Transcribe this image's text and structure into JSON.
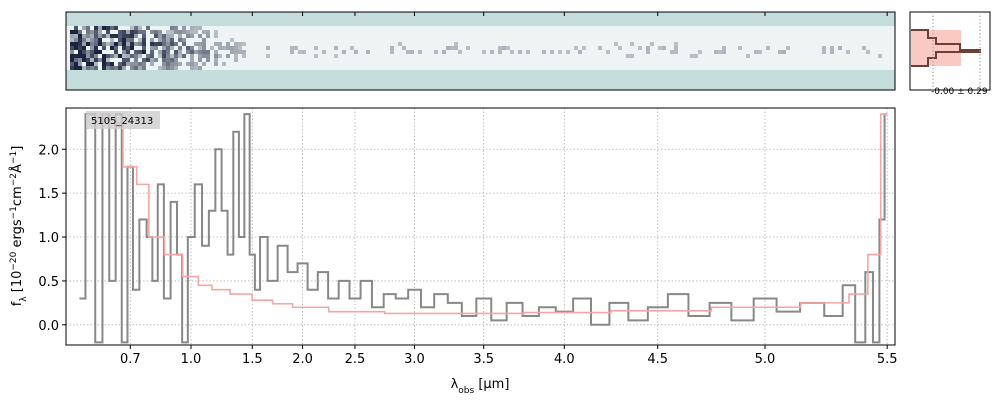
{
  "chart_data": {
    "type": "spectrum",
    "annotation": "5105_24313",
    "profile_label": "-0.00 ± 0.29",
    "xlabel": [
      "λ",
      "obs",
      " [μm]"
    ],
    "ylabel": [
      "f",
      "λ",
      " [10",
      "−20",
      " ergs",
      "−1",
      "cm",
      "−2",
      "Å",
      "−1",
      "]"
    ],
    "xlim": [
      0.52,
      5.53
    ],
    "ylim": [
      -0.23,
      2.47
    ],
    "xticks": [
      0.7,
      {
        "value": 1,
        "label": "1.0"
      },
      1.5,
      {
        "value": 2,
        "label": "2.0"
      },
      2.5,
      {
        "value": 3,
        "label": "3.0"
      },
      3.5,
      {
        "value": 4,
        "label": "4.0"
      },
      4.5,
      {
        "value": 5,
        "label": "5.0"
      },
      5.5
    ],
    "yticks": [
      {
        "value": 0,
        "label": "0.0"
      },
      0.5,
      {
        "value": 1,
        "label": "1.0"
      },
      1.5,
      {
        "value": 2,
        "label": "2.0"
      }
    ],
    "grid": true,
    "series": [
      {
        "name": "data",
        "color": "#888888",
        "x": [
          0.55,
          0.58,
          0.6,
          0.62,
          0.64,
          0.66,
          0.68,
          0.7,
          0.72,
          0.75,
          0.78,
          0.8,
          0.83,
          0.86,
          0.9,
          0.93,
          0.96,
          1.0,
          1.05,
          1.1,
          1.15,
          1.2,
          1.25,
          1.3,
          1.35,
          1.4,
          1.45,
          1.5,
          1.55,
          1.6,
          1.7,
          1.8,
          1.9,
          2.0,
          2.1,
          2.2,
          2.3,
          2.4,
          2.5,
          2.6,
          2.7,
          2.8,
          2.9,
          3.0,
          3.1,
          3.2,
          3.3,
          3.4,
          3.5,
          3.6,
          3.7,
          3.8,
          3.9,
          4.0,
          4.1,
          4.2,
          4.3,
          4.4,
          4.5,
          4.6,
          4.7,
          4.8,
          4.9,
          5.0,
          5.1,
          5.2,
          5.3,
          5.35,
          5.4,
          5.43,
          5.46,
          5.48,
          5.5
        ],
        "values": [
          0.3,
          2.4,
          -0.2,
          2.4,
          0.5,
          2.4,
          -0.2,
          1.8,
          0.4,
          1.2,
          1.0,
          0.5,
          1.6,
          0.3,
          1.4,
          0.8,
          -0.2,
          1.0,
          1.6,
          0.9,
          1.3,
          2.0,
          1.3,
          0.8,
          2.2,
          1.0,
          2.4,
          0.8,
          0.4,
          1.0,
          0.5,
          0.9,
          0.6,
          0.7,
          0.4,
          0.6,
          0.3,
          0.5,
          0.3,
          0.5,
          0.2,
          0.35,
          0.3,
          0.4,
          0.2,
          0.35,
          0.25,
          0.1,
          0.3,
          0.05,
          0.25,
          0.1,
          0.2,
          0.15,
          0.3,
          0.0,
          0.25,
          0.05,
          0.2,
          0.35,
          0.1,
          0.25,
          0.05,
          0.3,
          0.15,
          0.25,
          0.1,
          0.45,
          -0.2,
          0.6,
          -0.2,
          1.2,
          2.4
        ]
      },
      {
        "name": "model",
        "color": "#f4a6a6",
        "x": [
          0.6,
          0.65,
          0.7,
          0.75,
          0.8,
          0.9,
          1.0,
          1.1,
          1.2,
          1.4,
          1.6,
          1.8,
          2.0,
          2.5,
          3.0,
          3.5,
          4.0,
          4.5,
          5.0,
          5.3,
          5.4,
          5.45,
          5.5
        ],
        "values": [
          2.4,
          2.3,
          1.8,
          1.6,
          1.0,
          0.8,
          0.55,
          0.45,
          0.4,
          0.35,
          0.28,
          0.24,
          0.2,
          0.15,
          0.13,
          0.13,
          0.14,
          0.16,
          0.2,
          0.25,
          0.35,
          0.8,
          2.4
        ]
      }
    ]
  }
}
